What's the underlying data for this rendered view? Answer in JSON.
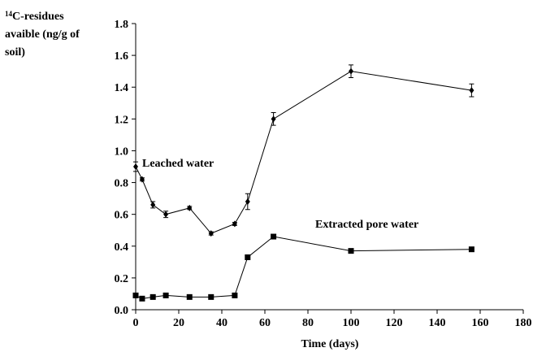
{
  "chart_data": {
    "type": "line",
    "x_label": "Time (days)",
    "y_label": {
      "superscript": "14",
      "lines": [
        "C-residues",
        "avaible (ng/g of",
        "soil)"
      ]
    },
    "xlim": [
      0,
      180
    ],
    "xticks": [
      0,
      20,
      40,
      60,
      80,
      100,
      120,
      140,
      160,
      180
    ],
    "ylim": [
      0,
      1.8
    ],
    "yticks": [
      {
        "value": 0,
        "label": "0.0"
      },
      0.2,
      0.4,
      0.6,
      0.8,
      {
        "value": 1,
        "label": "1.0"
      },
      1.2,
      1.4,
      1.6,
      1.8
    ],
    "series": [
      {
        "name": "Leached water",
        "color": "#000000",
        "marker": "diamond",
        "x": [
          0,
          3,
          8,
          14,
          25,
          35,
          46,
          52,
          64,
          100,
          156
        ],
        "values": [
          0.9,
          0.82,
          0.66,
          0.6,
          0.64,
          0.48,
          0.54,
          0.68,
          1.2,
          1.5,
          1.38
        ],
        "errors": [
          0.03,
          0.01,
          0.02,
          0.02,
          0.01,
          0.01,
          0.01,
          0.05,
          0.04,
          0.04,
          0.04
        ]
      },
      {
        "name": "Extracted pore water",
        "color": "#000000",
        "marker": "square",
        "x": [
          0,
          3,
          8,
          14,
          25,
          35,
          46,
          52,
          64,
          100,
          156
        ],
        "values": [
          0.09,
          0.07,
          0.08,
          0.09,
          0.08,
          0.08,
          0.09,
          0.33,
          0.46,
          0.37,
          0.38
        ]
      }
    ]
  }
}
